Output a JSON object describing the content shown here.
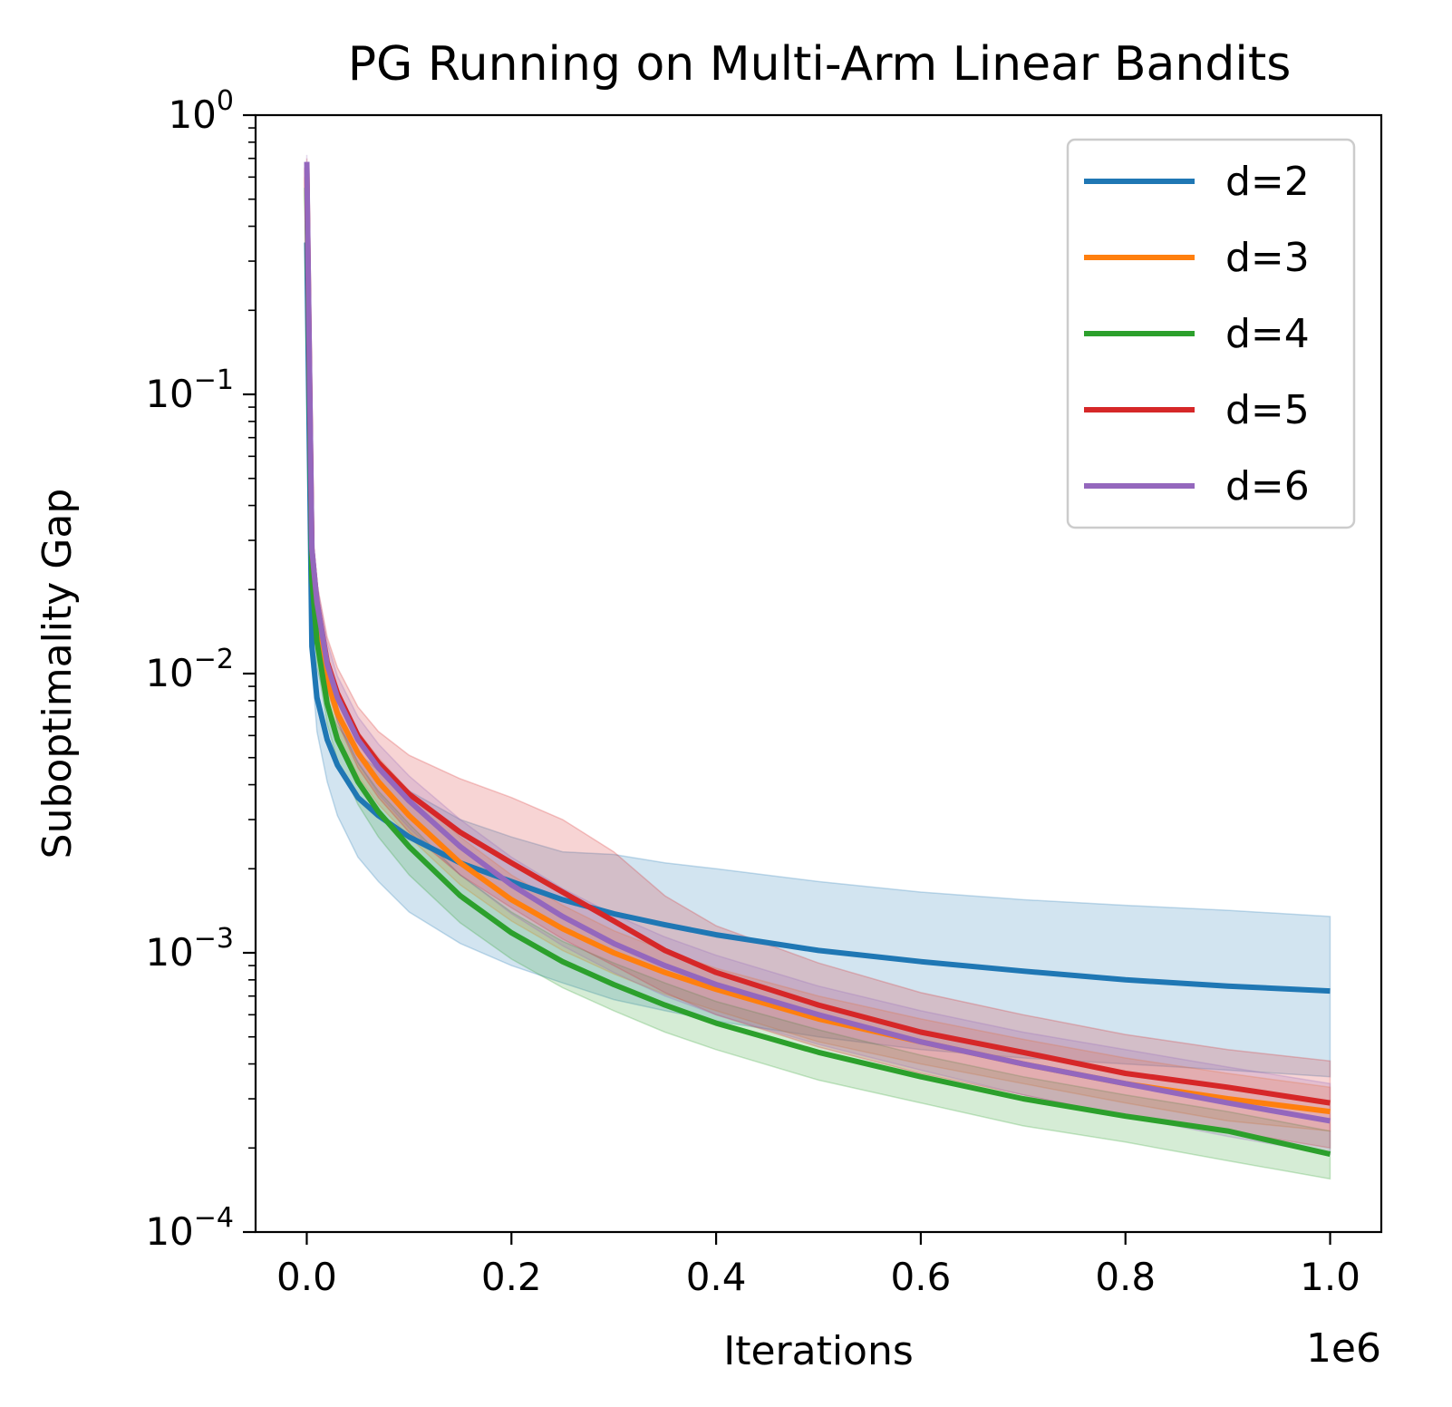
{
  "chart_data": {
    "type": "line",
    "title": "PG Running on Multi-Arm Linear Bandits",
    "xlabel": "Iterations",
    "ylabel": "Suboptimality Gap",
    "x_offset_label": "1e6",
    "xlim": [
      -0.05,
      1.05
    ],
    "ylim": [
      0.0001,
      1
    ],
    "yscale": "log",
    "x_ticks": [
      0.0,
      0.2,
      0.4,
      0.6,
      0.8,
      1.0
    ],
    "x_tick_labels": [
      "0.0",
      "0.2",
      "0.4",
      "0.6",
      "0.8",
      "1.0"
    ],
    "y_ticks": [
      {
        "value": 1,
        "base": "10",
        "exponent": "0"
      },
      {
        "value": 0.1,
        "base": "10",
        "exponent": "−1"
      },
      {
        "value": 0.01,
        "base": "10",
        "exponent": "−2"
      },
      {
        "value": 0.001,
        "base": "10",
        "exponent": "−3"
      },
      {
        "value": 0.0001,
        "base": "10",
        "exponent": "−4"
      }
    ],
    "grid": false,
    "legend_position": "top-right",
    "x": [
      0.0,
      0.005,
      0.01,
      0.02,
      0.03,
      0.05,
      0.07,
      0.1,
      0.15,
      0.2,
      0.25,
      0.3,
      0.35,
      0.4,
      0.5,
      0.6,
      0.7,
      0.8,
      0.9,
      1.0
    ],
    "series": [
      {
        "name": "d=2",
        "color": "#1f77b4",
        "values": [
          0.35,
          0.0125,
          0.0082,
          0.0058,
          0.0047,
          0.0036,
          0.0031,
          0.0026,
          0.0021,
          0.0018,
          0.00155,
          0.00138,
          0.00126,
          0.00116,
          0.00102,
          0.00093,
          0.00086,
          0.0008,
          0.00076,
          0.00073
        ],
        "lower": [
          0.35,
          0.0105,
          0.0062,
          0.0041,
          0.0031,
          0.0022,
          0.0018,
          0.0014,
          0.00108,
          0.0009,
          0.00078,
          0.00068,
          0.00062,
          0.00057,
          0.0005,
          0.00045,
          0.00042,
          0.0004,
          0.00038,
          0.00036
        ],
        "upper": [
          0.36,
          0.015,
          0.0105,
          0.0078,
          0.0065,
          0.0052,
          0.0045,
          0.0038,
          0.003,
          0.0026,
          0.0023,
          0.00225,
          0.0021,
          0.002,
          0.0018,
          0.00165,
          0.00155,
          0.00148,
          0.00142,
          0.00135
        ]
      },
      {
        "name": "d=3",
        "color": "#ff7f0e",
        "values": [
          0.6,
          0.026,
          0.016,
          0.0095,
          0.0072,
          0.0052,
          0.0041,
          0.0031,
          0.0021,
          0.00155,
          0.00122,
          0.001,
          0.00085,
          0.00074,
          0.00058,
          0.00048,
          0.0004,
          0.00034,
          0.0003,
          0.00027
        ],
        "lower": [
          0.58,
          0.024,
          0.014,
          0.008,
          0.006,
          0.0043,
          0.0034,
          0.0026,
          0.00175,
          0.0013,
          0.00102,
          0.00084,
          0.00071,
          0.00062,
          0.00048,
          0.0004,
          0.00034,
          0.00029,
          0.00025,
          0.00023
        ],
        "upper": [
          0.65,
          0.028,
          0.018,
          0.011,
          0.0084,
          0.0062,
          0.005,
          0.0038,
          0.0026,
          0.0019,
          0.00148,
          0.0012,
          0.00102,
          0.00088,
          0.0007,
          0.00058,
          0.00049,
          0.00042,
          0.00037,
          0.00033
        ]
      },
      {
        "name": "d=4",
        "color": "#2ca02c",
        "values": [
          0.55,
          0.022,
          0.013,
          0.0078,
          0.0058,
          0.0041,
          0.0032,
          0.0024,
          0.0016,
          0.00118,
          0.00093,
          0.00077,
          0.00065,
          0.00056,
          0.00044,
          0.00036,
          0.0003,
          0.00026,
          0.00023,
          0.00019
        ],
        "lower": [
          0.52,
          0.02,
          0.011,
          0.0066,
          0.0049,
          0.0034,
          0.0026,
          0.0019,
          0.00128,
          0.00095,
          0.00075,
          0.00062,
          0.00052,
          0.00045,
          0.00035,
          0.00029,
          0.00024,
          0.00021,
          0.00018,
          0.000155
        ],
        "upper": [
          0.6,
          0.024,
          0.015,
          0.009,
          0.0068,
          0.0048,
          0.0038,
          0.0029,
          0.0019,
          0.0014,
          0.0011,
          0.00092,
          0.00078,
          0.00067,
          0.00053,
          0.00043,
          0.00036,
          0.00031,
          0.00027,
          0.00023
        ]
      },
      {
        "name": "d=5",
        "color": "#d62728",
        "values": [
          0.65,
          0.028,
          0.018,
          0.011,
          0.0085,
          0.006,
          0.0048,
          0.0037,
          0.0027,
          0.0021,
          0.00165,
          0.0013,
          0.00102,
          0.00085,
          0.00065,
          0.00052,
          0.00044,
          0.00037,
          0.00033,
          0.00029
        ],
        "lower": [
          0.6,
          0.025,
          0.015,
          0.0088,
          0.0067,
          0.0046,
          0.0036,
          0.0027,
          0.0019,
          0.00145,
          0.00112,
          0.0009,
          0.00072,
          0.0006,
          0.00046,
          0.00037,
          0.00031,
          0.00026,
          0.00023,
          0.0002
        ],
        "upper": [
          0.7,
          0.031,
          0.021,
          0.0135,
          0.0105,
          0.0076,
          0.0062,
          0.0051,
          0.0042,
          0.0036,
          0.003,
          0.0023,
          0.0016,
          0.00125,
          0.00092,
          0.00072,
          0.0006,
          0.00051,
          0.00045,
          0.00041
        ]
      },
      {
        "name": "d=6",
        "color": "#9467bd",
        "values": [
          0.68,
          0.028,
          0.018,
          0.0108,
          0.0082,
          0.0058,
          0.0046,
          0.0035,
          0.0024,
          0.00175,
          0.00135,
          0.00108,
          0.0009,
          0.00077,
          0.0006,
          0.00048,
          0.0004,
          0.00034,
          0.00029,
          0.00025
        ],
        "lower": [
          0.62,
          0.025,
          0.0155,
          0.009,
          0.0068,
          0.0048,
          0.0037,
          0.0028,
          0.0019,
          0.00138,
          0.00106,
          0.00085,
          0.0007,
          0.0006,
          0.00047,
          0.00038,
          0.00031,
          0.00026,
          0.00022,
          0.00019
        ],
        "upper": [
          0.72,
          0.031,
          0.021,
          0.013,
          0.0098,
          0.007,
          0.0056,
          0.0043,
          0.003,
          0.0022,
          0.0017,
          0.00137,
          0.00114,
          0.00098,
          0.00076,
          0.00062,
          0.00052,
          0.00045,
          0.00039,
          0.00034
        ]
      }
    ]
  }
}
